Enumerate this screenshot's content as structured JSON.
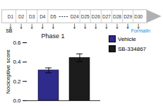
{
  "chart_data": {
    "type": "bar",
    "title": "Phase 1",
    "ylabel": "Nociceptive score",
    "categories": [
      "Vehicle",
      "SB-334867"
    ],
    "values": [
      0.315,
      0.445
    ],
    "errors": [
      0.025,
      0.04
    ],
    "colors": [
      "#2e2b8c",
      "#1c1c1c"
    ],
    "ylim": [
      0.0,
      0.6
    ],
    "yticks": [
      {
        "value": 0.0,
        "label": "0.0"
      },
      {
        "value": 0.2,
        "label": "0.2"
      },
      {
        "value": 0.4,
        "label": "0.4"
      },
      {
        "value": 0.6,
        "label": "0.6"
      }
    ],
    "legend": "right",
    "tick_labels": "y",
    "annotations": [
      {
        "text": "D1"
      },
      {
        "text": "D2"
      },
      {
        "text": "D3"
      },
      {
        "text": "D4"
      },
      {
        "text": "D5"
      },
      {
        "text": "D24"
      },
      {
        "text": "D25"
      },
      {
        "text": "D26"
      },
      {
        "text": "D27"
      },
      {
        "text": "D28"
      },
      {
        "text": "D29"
      },
      {
        "text": "D30"
      },
      {
        "text": "Formalin",
        "color": "#1a8fd1",
        "at": "D29"
      },
      {
        "text": "SB",
        "at": "D1"
      }
    ]
  }
}
